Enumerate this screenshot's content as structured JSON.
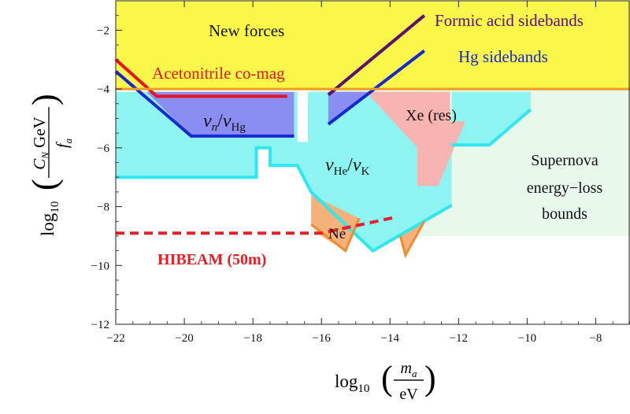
{
  "chart_data": {
    "type": "area",
    "title": "",
    "xlabel": {
      "prefix": "log",
      "sub": "10",
      "num": "m",
      "num_sub": "a",
      "den": "eV"
    },
    "ylabel": {
      "prefix": "log",
      "sub": "10",
      "num": "C",
      "num_sub": "N",
      "num_rest": " GeV",
      "den": "f",
      "den_sub": "a"
    },
    "xlim": [
      -22,
      -7
    ],
    "ylim": [
      -12,
      -1
    ],
    "x_ticks": [
      -22,
      -20,
      -18,
      -16,
      -14,
      -12,
      -10,
      -8
    ],
    "y_ticks": [
      -12,
      -10,
      -8,
      -6,
      -4,
      -2
    ],
    "regions": [
      {
        "id": "new-forces",
        "fill": "#fbf64a",
        "points": [
          [
            -22,
            -1
          ],
          [
            -7,
            -1
          ],
          [
            -7,
            -4
          ],
          [
            -22,
            -4
          ]
        ]
      },
      {
        "id": "supernova",
        "fill": "#e8f8ea",
        "points": [
          [
            -16.3,
            -4
          ],
          [
            -7,
            -4
          ],
          [
            -7,
            -9
          ],
          [
            -16.3,
            -9
          ]
        ]
      },
      {
        "id": "he-k",
        "fill": "#8df4f2",
        "points": [
          [
            -22,
            -4.1
          ],
          [
            -16.7,
            -4.1
          ],
          [
            -16.7,
            -5.8
          ],
          [
            -16.4,
            -5.8
          ],
          [
            -16.4,
            -4.1
          ],
          [
            -13.1,
            -4.1
          ],
          [
            -13.1,
            -5.3
          ],
          [
            -12.2,
            -5.3
          ],
          [
            -12.2,
            -4.1
          ],
          [
            -11.1,
            -4.1
          ],
          [
            -11.1,
            -5.9
          ],
          [
            -12.2,
            -5.9
          ],
          [
            -12.2,
            -7.95
          ],
          [
            -14.5,
            -9.5
          ],
          [
            -16.3,
            -7.5
          ],
          [
            -16.7,
            -6.6
          ],
          [
            -17.5,
            -6.6
          ],
          [
            -17.5,
            -6.0
          ],
          [
            -17.9,
            -6.0
          ],
          [
            -17.9,
            -7.0
          ],
          [
            -22,
            -7.0
          ]
        ]
      },
      {
        "id": "he-k-step",
        "fill": "#8df4f2",
        "points": [
          [
            -11.1,
            -4.1
          ],
          [
            -9.9,
            -4.1
          ],
          [
            -9.9,
            -4.7
          ],
          [
            -11.1,
            -5.9
          ]
        ]
      },
      {
        "id": "ne",
        "fill": "#f4b17a",
        "points": [
          [
            -16.3,
            -7.6
          ],
          [
            -14.9,
            -8.4
          ],
          [
            -15.3,
            -9.5
          ],
          [
            -16.0,
            -9.0
          ],
          [
            -16.3,
            -8.6
          ]
        ]
      },
      {
        "id": "ne-small",
        "fill": "#f4b17a",
        "points": [
          [
            -13.7,
            -9.0
          ],
          [
            -13.0,
            -8.5
          ],
          [
            -13.55,
            -9.65
          ]
        ]
      },
      {
        "id": "n-hg",
        "fill": "#8a8ef2",
        "points": [
          [
            -21.1,
            -4.1
          ],
          [
            -16.8,
            -4.1
          ],
          [
            -16.8,
            -5.6
          ],
          [
            -19.8,
            -5.6
          ]
        ]
      },
      {
        "id": "hg-small",
        "fill": "#8a8ef2",
        "points": [
          [
            -15.8,
            -4.1
          ],
          [
            -14.6,
            -4.1
          ],
          [
            -15.8,
            -5.2
          ]
        ]
      },
      {
        "id": "xe",
        "fill": "#f7b4b1",
        "points": [
          [
            -14.7,
            -4.1
          ],
          [
            -12.25,
            -4.1
          ],
          [
            -12.25,
            -5.1
          ],
          [
            -11.8,
            -5.1
          ],
          [
            -12.6,
            -7.3
          ],
          [
            -13.2,
            -7.3
          ],
          [
            -13.2,
            -6.0
          ]
        ]
      }
    ],
    "lines": [
      {
        "id": "acetonitrile",
        "color": "#e8141e",
        "width": 4,
        "dash": false,
        "points": [
          [
            -22,
            -3.0
          ],
          [
            -20.8,
            -4.25
          ],
          [
            -17.0,
            -4.25
          ]
        ]
      },
      {
        "id": "hg-sidebands-left",
        "color": "#1528d2",
        "width": 4,
        "dash": false,
        "points": [
          [
            -22,
            -3.4
          ],
          [
            -19.8,
            -5.6
          ],
          [
            -16.8,
            -5.6
          ]
        ]
      },
      {
        "id": "formic-acid",
        "color": "#5b0f72",
        "width": 4,
        "dash": false,
        "points": [
          [
            -15.8,
            -4.2
          ],
          [
            -13.0,
            -1.5
          ]
        ]
      },
      {
        "id": "hg-sidebands-right",
        "color": "#1528d2",
        "width": 4,
        "dash": false,
        "points": [
          [
            -15.8,
            -5.2
          ],
          [
            -13.0,
            -2.7
          ]
        ]
      },
      {
        "id": "new-forces-boundary",
        "color": "#f29a22",
        "width": 3,
        "dash": false,
        "points": [
          [
            -22,
            -4.0
          ],
          [
            -7,
            -4.0
          ]
        ]
      },
      {
        "id": "he-k-outline",
        "color": "#2ee8ee",
        "width": 4,
        "dash": false,
        "points": [
          [
            -22,
            -7.0
          ],
          [
            -17.9,
            -7.0
          ],
          [
            -17.9,
            -6.0
          ],
          [
            -17.5,
            -6.0
          ],
          [
            -17.5,
            -6.6
          ],
          [
            -16.7,
            -6.6
          ],
          [
            -16.3,
            -7.5
          ],
          [
            -14.5,
            -9.5
          ],
          [
            -12.2,
            -7.95
          ]
        ]
      },
      {
        "id": "he-k-outline-right",
        "color": "#2ee8ee",
        "width": 4,
        "dash": false,
        "points": [
          [
            -12.2,
            -5.9
          ],
          [
            -11.1,
            -5.9
          ],
          [
            -9.9,
            -4.7
          ]
        ]
      },
      {
        "id": "ne-outline",
        "color": "#f08b2e",
        "width": 3,
        "dash": false,
        "points": [
          [
            -16.3,
            -8.6
          ],
          [
            -15.3,
            -9.5
          ],
          [
            -14.9,
            -8.4
          ]
        ]
      },
      {
        "id": "ne-small-outline",
        "color": "#f08b2e",
        "width": 3,
        "dash": false,
        "points": [
          [
            -13.7,
            -9.0
          ],
          [
            -13.55,
            -9.65
          ],
          [
            -13.0,
            -8.5
          ]
        ]
      },
      {
        "id": "hibeam",
        "color": "#ea1c24",
        "width": 4,
        "dash": true,
        "points": [
          [
            -22,
            -8.9
          ],
          [
            -16.0,
            -8.9
          ],
          [
            -13.8,
            -8.35
          ]
        ]
      }
    ],
    "annotations": {
      "new_forces": {
        "text": "New forces",
        "color": "#111111"
      },
      "formic": {
        "text": "Formic acid sidebands",
        "color": "#5b0f72"
      },
      "hg": {
        "text": "Hg sidebands",
        "color": "#1528d2"
      },
      "acetonitrile": {
        "text": "Acetonitrile co-mag",
        "color": "#e8141e"
      },
      "xe": {
        "text": "Xe (res)",
        "color": "#111111"
      },
      "supernova_1": {
        "text": "Supernova",
        "color": "#111111"
      },
      "supernova_2": {
        "text": "energy−loss",
        "color": "#111111"
      },
      "supernova_3": {
        "text": "bounds",
        "color": "#111111"
      },
      "ne": {
        "text": "Ne",
        "color": "#111111"
      },
      "hibeam": {
        "text": "HIBEAM (50m)",
        "color": "#ea1c24"
      },
      "n_hg": {
        "nu": "ν",
        "sub1": "n",
        "slash": "/",
        "sub2": "Hg"
      },
      "he_k": {
        "nu": "ν",
        "sub1": "He",
        "slash": "/",
        "sub2": "K"
      }
    }
  }
}
